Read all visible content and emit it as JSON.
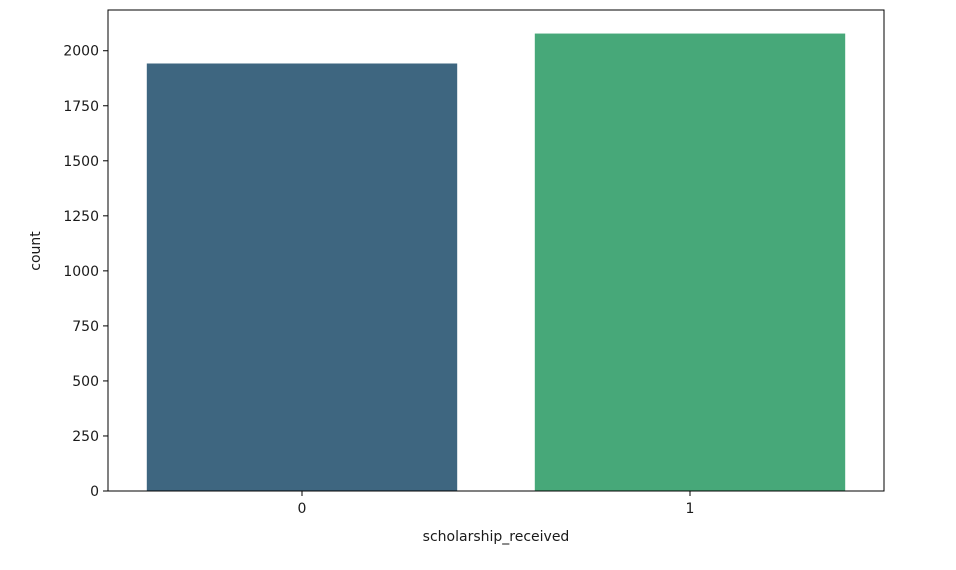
{
  "chart_data": {
    "type": "bar",
    "title": "",
    "xlabel": "scholarship_received",
    "ylabel": "count",
    "categories": [
      "0",
      "1"
    ],
    "values": [
      1942,
      2078
    ],
    "colors": [
      "#3e6680",
      "#47a879"
    ],
    "ylim": [
      0,
      2185
    ],
    "yticks": [
      0,
      250,
      500,
      750,
      1000,
      1250,
      1500,
      1750,
      2000
    ],
    "ytick_labels": [
      "0",
      "250",
      "500",
      "750",
      "1000",
      "1250",
      "1500",
      "1750",
      "2000"
    ],
    "grid": false,
    "legend": "none"
  }
}
